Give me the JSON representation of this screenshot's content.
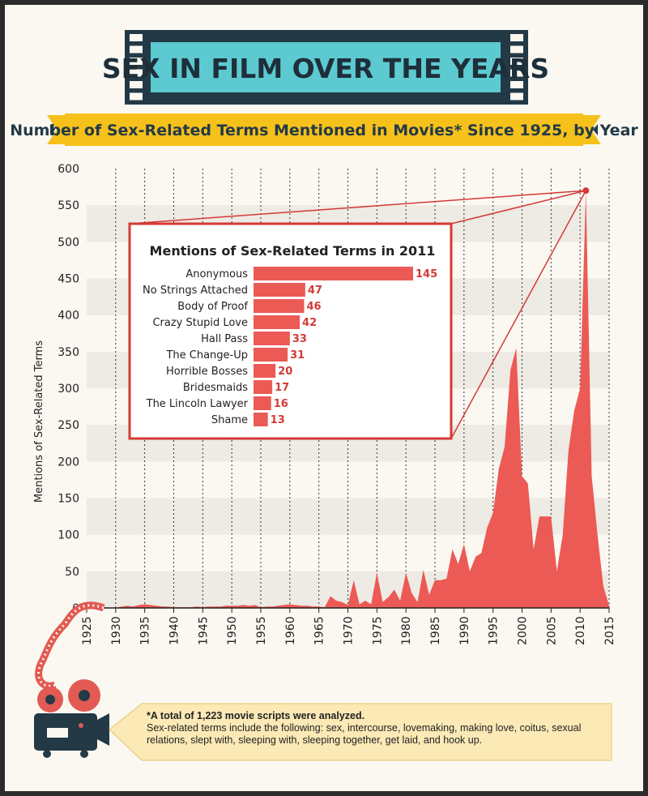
{
  "header": {
    "title": "SEX IN FILM OVER THE YEARS",
    "subtitle": "Number of Sex-Related Terms Mentioned in Movies* Since 1925, by Year"
  },
  "colors": {
    "area": "#ec5a55",
    "bar": "#ec5a55",
    "banner_teal": "#5ccad0",
    "banner_dark": "#233a46",
    "ribbon_yellow": "#f6c11b",
    "inset_border": "#d33a36",
    "note_bg": "#fbe9b6"
  },
  "chart_data": [
    {
      "type": "area",
      "ylabel": "Mentions of Sex-Related Terms",
      "xlabel": "",
      "xlim": [
        1925,
        2015
      ],
      "ylim": [
        0,
        600
      ],
      "x_ticks": [
        1925,
        1930,
        1935,
        1940,
        1945,
        1950,
        1955,
        1960,
        1965,
        1970,
        1975,
        1980,
        1985,
        1990,
        1995,
        2000,
        2005,
        2010,
        2015
      ],
      "y_ticks": [
        0,
        50,
        100,
        150,
        200,
        250,
        300,
        350,
        400,
        450,
        500,
        550,
        600
      ],
      "grid": "vertical dotted lines, horizontal bands",
      "series": [
        {
          "x": [
            1925,
            1926,
            1927,
            1928,
            1929,
            1930,
            1931,
            1932,
            1933,
            1934,
            1935,
            1936,
            1937,
            1938,
            1939,
            1940,
            1941,
            1942,
            1943,
            1944,
            1945,
            1946,
            1947,
            1948,
            1949,
            1950,
            1951,
            1952,
            1953,
            1954,
            1955,
            1956,
            1957,
            1958,
            1959,
            1960,
            1961,
            1962,
            1963,
            1964,
            1965,
            1966,
            1967,
            1968,
            1969,
            1970,
            1971,
            1972,
            1973,
            1974,
            1975,
            1976,
            1977,
            1978,
            1979,
            1980,
            1981,
            1982,
            1983,
            1984,
            1985,
            1986,
            1987,
            1988,
            1989,
            1990,
            1991,
            1992,
            1993,
            1994,
            1995,
            1996,
            1997,
            1998,
            1999,
            2000,
            2001,
            2002,
            2003,
            2004,
            2005,
            2006,
            2007,
            2008,
            2009,
            2010,
            2011,
            2012,
            2013,
            2014,
            2015
          ],
          "y": [
            0,
            1,
            0,
            1,
            0,
            0,
            2,
            3,
            2,
            4,
            5,
            4,
            3,
            2,
            2,
            1,
            1,
            1,
            1,
            2,
            1,
            2,
            2,
            2,
            3,
            3,
            3,
            4,
            3,
            4,
            1,
            2,
            2,
            3,
            4,
            5,
            4,
            3,
            3,
            2,
            2,
            1,
            16,
            10,
            8,
            4,
            38,
            5,
            10,
            5,
            48,
            8,
            15,
            25,
            10,
            48,
            20,
            8,
            52,
            18,
            38,
            38,
            40,
            80,
            60,
            87,
            50,
            70,
            75,
            110,
            130,
            190,
            220,
            325,
            355,
            180,
            170,
            80,
            125,
            125,
            125,
            50,
            100,
            215,
            270,
            300,
            570,
            180,
            100,
            30,
            3
          ]
        }
      ]
    },
    {
      "type": "bar",
      "title": "Mentions of Sex-Related Terms in 2011",
      "categories": [
        "Anonymous",
        "No Strings Attached",
        "Body of Proof",
        "Crazy Stupid Love",
        "Hall Pass",
        "The Change-Up",
        "Horrible Bosses",
        "Bridesmaids",
        "The Lincoln Lawyer",
        "Shame"
      ],
      "values": [
        145,
        47,
        46,
        42,
        33,
        31,
        20,
        17,
        16,
        13
      ]
    }
  ],
  "note": {
    "line1": "*A total of 1,223 movie scripts were analyzed.",
    "line2": "Sex-related terms include the following: sex, intercourse, lovemaking, making love, coitus, sexual relations, slept with, sleeping with, sleeping together, get laid, and hook up."
  }
}
